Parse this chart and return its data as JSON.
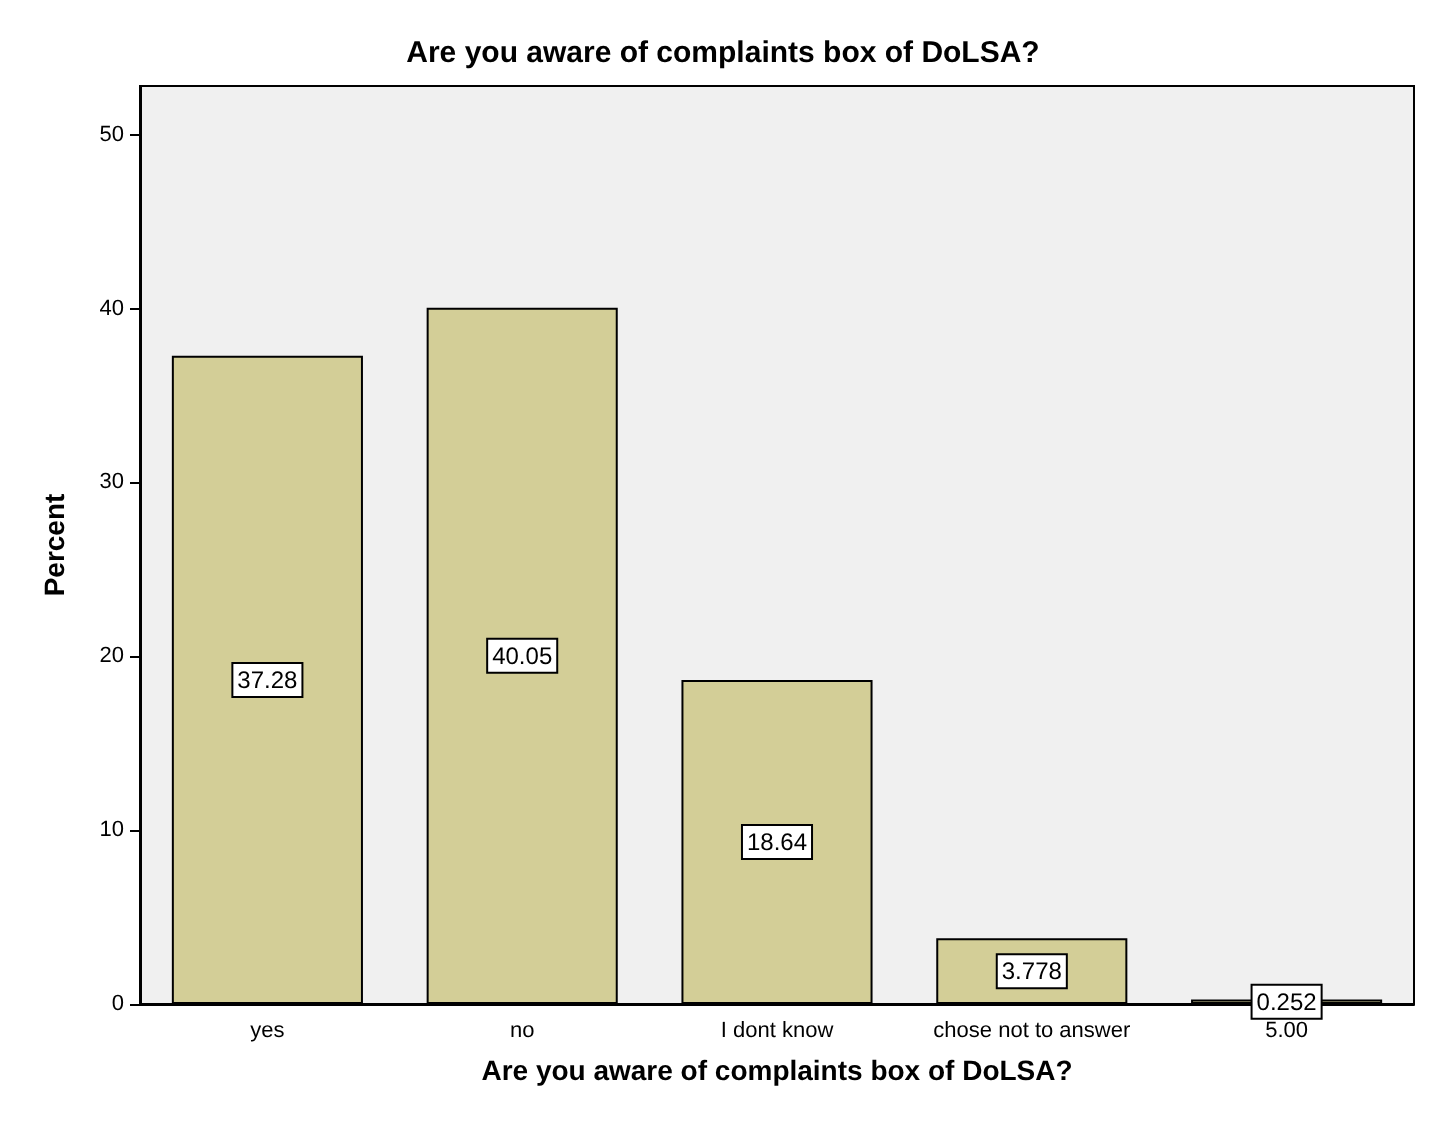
{
  "chart_data": {
    "type": "bar",
    "title": "Are you aware of complaints box of DoLSA?",
    "xlabel": "Are you aware of complaints box of DoLSA?",
    "ylabel": "Percent",
    "categories": [
      "yes",
      "no",
      "I dont know",
      "chose not to answer",
      "5.00"
    ],
    "values": [
      37.28,
      40.05,
      18.64,
      3.778,
      0.252
    ],
    "color": "#d3ce97",
    "value_labels": [
      "37.28",
      "40.05",
      "18.64",
      "3.778",
      "0.252"
    ],
    "ylim": [
      0,
      52.8
    ],
    "yticks": [
      0,
      10,
      20,
      30,
      40,
      50
    ],
    "grid": false
  }
}
